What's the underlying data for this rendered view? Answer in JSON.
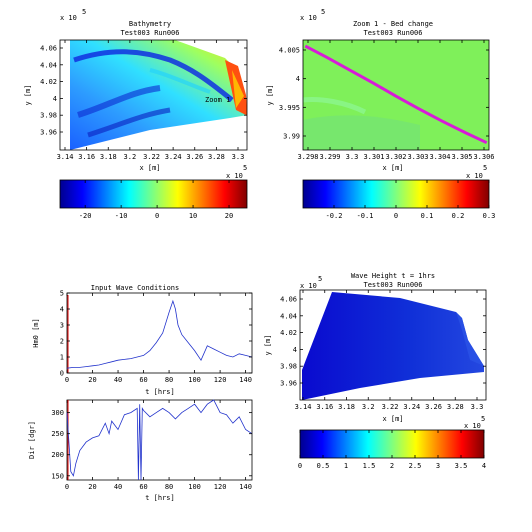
{
  "colors": {
    "green_field": "#7FF05A",
    "magenta": "#D81BD8",
    "blue_fill": "#1E2FC4",
    "red_line": "#E00000",
    "blue_line": "#2233CC"
  },
  "panels": {
    "bathymetry": {
      "title1": "Bathymetry",
      "title2": "Test003 Run006",
      "xlabel": "x [m]",
      "ylabel": "y [m]",
      "xexp": "5",
      "xexp_base": "x 10",
      "yexp": "5",
      "yexp_base": "x 10",
      "annotation": "Zoom 1",
      "xticks": [
        "3.14",
        "3.16",
        "3.18",
        "3.2",
        "3.22",
        "3.24",
        "3.26",
        "3.28",
        "3.3"
      ],
      "yticks": [
        "4.06",
        "4.04",
        "4.02",
        "4",
        "3.98",
        "3.96"
      ]
    },
    "zoom": {
      "title1": "Zoom 1 - Bed change",
      "title2": "Test003 Run006",
      "xlabel": "x [m]",
      "ylabel": "y [m]",
      "xexp": "5",
      "xexp_base": "x 10",
      "yexp": "5",
      "yexp_base": "x 10",
      "xticks": [
        "3.298",
        "3.299",
        "3.3",
        "3.301",
        "3.302",
        "3.303",
        "3.304",
        "3.305",
        "3.306"
      ],
      "yticks": [
        "4.005",
        "4",
        "3.995",
        "3.99"
      ]
    },
    "waves": {
      "title": "Input Wave Conditions",
      "xlabel": "t [hrs]",
      "ylabel_hm0": "Hm0 [m]",
      "ylabel_dir": "Dir [dgr]",
      "xticks": [
        "0",
        "20",
        "40",
        "60",
        "80",
        "100",
        "120",
        "140"
      ],
      "hm0_yticks": [
        "5",
        "4",
        "3",
        "2",
        "1",
        "0"
      ],
      "dir_yticks": [
        "300",
        "250",
        "200",
        "150"
      ]
    },
    "waveheight": {
      "title1": "Wave Height  t = 1hrs",
      "title2": "Test003 Run006",
      "xlabel": "x [m]",
      "ylabel": "y [m]",
      "xexp": "5",
      "xexp_base": "x 10",
      "yexp": "5",
      "yexp_base": "x 10",
      "xticks": [
        "3.14",
        "3.16",
        "3.18",
        "3.2",
        "3.22",
        "3.24",
        "3.26",
        "3.28",
        "3.3"
      ],
      "yticks": [
        "4.06",
        "4.04",
        "4.02",
        "4",
        "3.98",
        "3.96"
      ]
    }
  },
  "colorbars": {
    "bathymetry": {
      "ticks": [
        "-20",
        "-10",
        "0",
        "10",
        "20"
      ],
      "range": [
        -27,
        25
      ]
    },
    "bedchange": {
      "ticks": [
        "-0.2",
        "-0.1",
        "0",
        "0.1",
        "0.2",
        "0.3"
      ],
      "range": [
        -0.3,
        0.3
      ]
    },
    "waveheight": {
      "ticks": [
        "0",
        "0.5",
        "1",
        "1.5",
        "2",
        "2.5",
        "3",
        "3.5",
        "4"
      ],
      "range": [
        0,
        4
      ]
    }
  },
  "chart_data": [
    {
      "type": "heatmap",
      "title": "Bathymetry",
      "subtitle": "Test003 Run006",
      "xlabel": "x [m]",
      "ylabel": "y [m]",
      "xlim": [
        313500,
        331000
      ],
      "ylim": [
        395200,
        406800
      ],
      "colorbar_range": [
        -27,
        25
      ],
      "annotation": "Zoom 1"
    },
    {
      "type": "heatmap",
      "title": "Zoom 1 - Bed change",
      "subtitle": "Test003 Run006",
      "xlabel": "x [m]",
      "ylabel": "y [m]",
      "xlim": [
        329800,
        330600
      ],
      "ylim": [
        398800,
        400600
      ],
      "colorbar_range": [
        -0.3,
        0.3
      ],
      "line_series": {
        "x": [
          329810,
          329900,
          330000,
          330100,
          330200,
          330300,
          330400,
          330500,
          330590
        ],
        "y": [
          400500,
          400320,
          400110,
          399900,
          399680,
          399470,
          399270,
          399080,
          398920
        ]
      }
    },
    {
      "type": "line",
      "title": "Input Wave Conditions",
      "xlabel": "t [hrs]",
      "ylabel": "Hm0 [m]",
      "xlim": [
        0,
        145
      ],
      "ylim": [
        0,
        5
      ],
      "x": [
        0,
        5,
        10,
        15,
        20,
        25,
        30,
        35,
        40,
        45,
        50,
        55,
        60,
        65,
        70,
        75,
        80,
        83,
        85,
        87,
        90,
        95,
        100,
        105,
        110,
        115,
        120,
        125,
        130,
        135,
        140,
        145
      ],
      "y": [
        0.3,
        0.35,
        0.35,
        0.4,
        0.45,
        0.5,
        0.6,
        0.7,
        0.8,
        0.85,
        0.9,
        1.0,
        1.1,
        1.4,
        1.9,
        2.5,
        3.8,
        4.5,
        4.0,
        3.0,
        2.4,
        1.9,
        1.4,
        0.8,
        1.7,
        1.5,
        1.3,
        1.1,
        1.0,
        1.2,
        1.1,
        1.0
      ],
      "marker_x": 3
    },
    {
      "type": "line",
      "xlabel": "t [hrs]",
      "ylabel": "Dir [dgr]",
      "xlim": [
        0,
        145
      ],
      "ylim": [
        140,
        330
      ],
      "x": [
        0,
        3,
        5,
        7,
        10,
        15,
        20,
        25,
        30,
        33,
        35,
        40,
        45,
        50,
        55,
        56,
        57,
        58,
        59,
        60,
        65,
        70,
        75,
        80,
        85,
        90,
        95,
        100,
        105,
        110,
        115,
        120,
        125,
        130,
        135,
        140,
        145
      ],
      "y": [
        300,
        160,
        150,
        180,
        210,
        230,
        240,
        245,
        275,
        250,
        280,
        260,
        295,
        300,
        310,
        140,
        320,
        140,
        310,
        305,
        290,
        300,
        310,
        300,
        285,
        300,
        310,
        320,
        300,
        320,
        330,
        300,
        295,
        275,
        290,
        260,
        250
      ],
      "marker_x": 3
    },
    {
      "type": "heatmap",
      "title": "Wave Height  t = 1hrs",
      "subtitle": "Test003 Run006",
      "xlabel": "x [m]",
      "ylabel": "y [m]",
      "xlim": [
        313500,
        331000
      ],
      "ylim": [
        395200,
        406800
      ],
      "colorbar_range": [
        0,
        4
      ]
    }
  ]
}
